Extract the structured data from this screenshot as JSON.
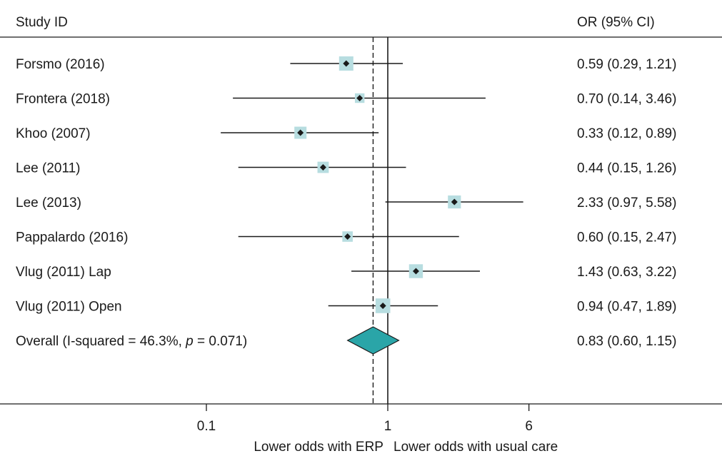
{
  "chart_data": {
    "type": "forest",
    "header_left": "Study ID",
    "header_right": "OR (95% CI)",
    "x_scale": "log",
    "ticks": [
      {
        "value": 0.1,
        "label": "0.1"
      },
      {
        "value": 1,
        "label": "1"
      },
      {
        "value": 6,
        "label": "6"
      }
    ],
    "null_line": 1,
    "pooled_line": 0.83,
    "footer_left": "Lower odds with ERP",
    "footer_right": "Lower odds with usual care",
    "studies": [
      {
        "label": "Forsmo (2016)",
        "or": 0.59,
        "lo": 0.29,
        "hi": 1.21,
        "ci_text": "0.59 (0.29, 1.21)",
        "weight": 1.0
      },
      {
        "label": "Frontera (2018)",
        "or": 0.7,
        "lo": 0.14,
        "hi": 3.46,
        "ci_text": "0.70 (0.14, 3.46)",
        "weight": 0.45
      },
      {
        "label": "Khoo (2007)",
        "or": 0.33,
        "lo": 0.12,
        "hi": 0.89,
        "ci_text": "0.33 (0.12, 0.89)",
        "weight": 0.75
      },
      {
        "label": "Lee (2011)",
        "or": 0.44,
        "lo": 0.15,
        "hi": 1.26,
        "ci_text": "0.44 (0.15, 1.26)",
        "weight": 0.65
      },
      {
        "label": "Lee (2013)",
        "or": 2.33,
        "lo": 0.97,
        "hi": 5.58,
        "ci_text": "2.33 (0.97, 5.58)",
        "weight": 0.85
      },
      {
        "label": "Pappalardo (2016)",
        "or": 0.6,
        "lo": 0.15,
        "hi": 2.47,
        "ci_text": "0.60 (0.15, 2.47)",
        "weight": 0.55
      },
      {
        "label": "Vlug (2011) Lap",
        "or": 1.43,
        "lo": 0.63,
        "hi": 3.22,
        "ci_text": "1.43 (0.63, 3.22)",
        "weight": 0.95
      },
      {
        "label": "Vlug (2011) Open",
        "or": 0.94,
        "lo": 0.47,
        "hi": 1.89,
        "ci_text": "0.94 (0.47, 1.89)",
        "weight": 1.05
      }
    ],
    "overall": {
      "label_prefix": "Overall  (I-squared = 46.3%, ",
      "label_p": "p",
      "label_suffix": " = 0.071)",
      "or": 0.83,
      "lo": 0.6,
      "hi": 1.15,
      "ci_text": "0.83 (0.60, 1.15)"
    },
    "colors": {
      "box": "#b7dde0",
      "diamond": "#2aa5a8",
      "line": "#1a1a1a"
    }
  }
}
